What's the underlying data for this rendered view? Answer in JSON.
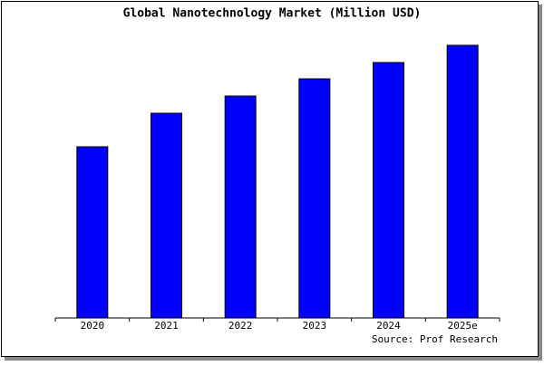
{
  "chart_data": {
    "type": "bar",
    "title": "Global Nanotechnology Market (Million USD)",
    "categories": [
      "2020",
      "2021",
      "2022",
      "2023",
      "2024",
      "2025e"
    ],
    "values": [
      189,
      226,
      245,
      264,
      282,
      301
    ],
    "color": "#0000ff",
    "source": "Source: Prof Research"
  }
}
